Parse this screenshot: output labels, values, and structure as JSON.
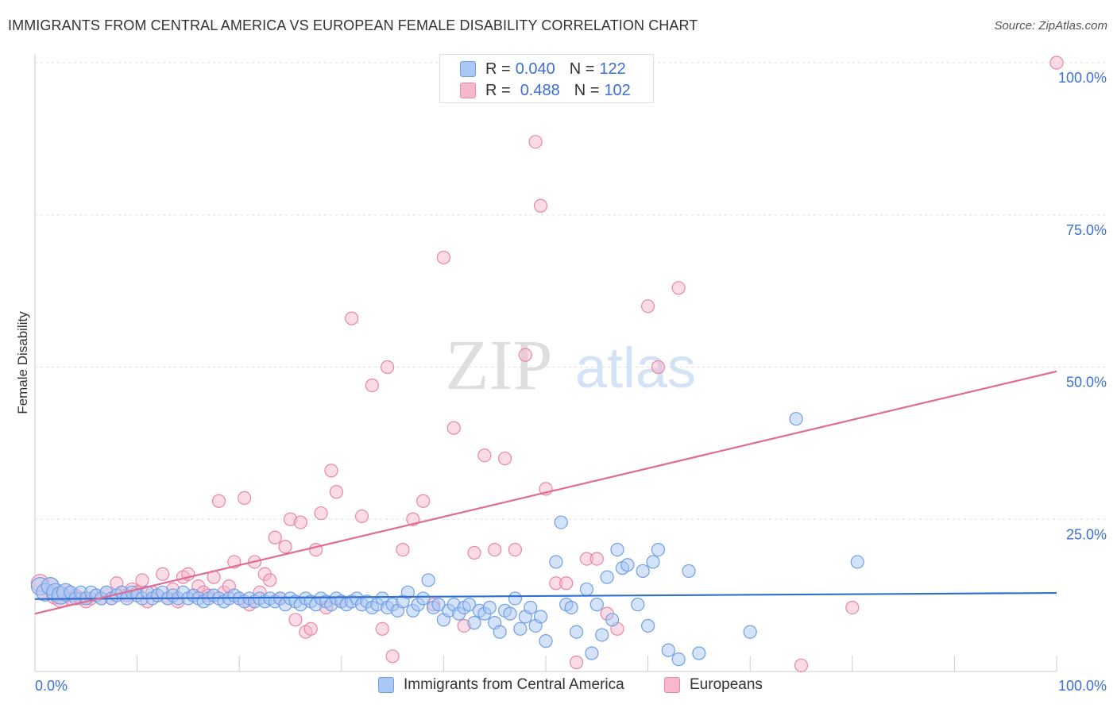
{
  "header": {
    "title": "IMMIGRANTS FROM CENTRAL AMERICA VS EUROPEAN FEMALE DISABILITY CORRELATION CHART",
    "source": "Source: ZipAtlas.com"
  },
  "colors": {
    "blue_fill": "#a9c8f5",
    "blue_stroke": "#6f9fe6",
    "blue_line": "#2f6fd1",
    "pink_fill": "#f7b8cb",
    "pink_stroke": "#e886a6",
    "pink_line": "#e06b93",
    "accent_text": "#3a6fd8"
  },
  "legend": {
    "rows": [
      {
        "r_label": "R =",
        "r_value": "0.040",
        "n_label": "N =",
        "n_value": "122"
      },
      {
        "r_label": "R =",
        "r_value": "0.488",
        "n_label": "N =",
        "n_value": "102"
      }
    ]
  },
  "bottom_legend": {
    "items": [
      "Immigrants from Central America",
      "Europeans"
    ]
  },
  "watermark": {
    "zip": "ZIP",
    "atlas": "atlas"
  },
  "chart_data": {
    "type": "scatter",
    "ylabel": "Female Disability",
    "x_tick_labels": [
      "0.0%",
      "100.0%"
    ],
    "y_tick_labels": [
      "100.0%",
      "75.0%",
      "50.0%",
      "25.0%"
    ],
    "y_ticks": [
      100,
      75,
      50,
      25
    ],
    "xlim": [
      0,
      100
    ],
    "ylim": [
      0,
      100
    ],
    "grid": true,
    "legend_placement": "top-center",
    "series": [
      {
        "name": "Immigrants from Central America",
        "color": "blue",
        "trend": {
          "x": [
            0,
            100
          ],
          "y": [
            11.9,
            12.9
          ]
        },
        "points": [
          [
            0.5,
            14
          ],
          [
            1,
            13
          ],
          [
            1.5,
            14
          ],
          [
            2,
            13
          ],
          [
            2.5,
            12.5
          ],
          [
            3,
            13
          ],
          [
            3.5,
            13
          ],
          [
            4,
            12
          ],
          [
            4.5,
            13
          ],
          [
            5,
            12
          ],
          [
            5.5,
            13
          ],
          [
            6,
            12.5
          ],
          [
            6.5,
            12
          ],
          [
            7,
            13
          ],
          [
            7.5,
            12
          ],
          [
            8,
            12.5
          ],
          [
            8.5,
            13
          ],
          [
            9,
            12
          ],
          [
            9.5,
            13
          ],
          [
            10,
            12.5
          ],
          [
            10.5,
            12
          ],
          [
            11,
            13
          ],
          [
            11.5,
            12
          ],
          [
            12,
            12.5
          ],
          [
            12.5,
            13
          ],
          [
            13,
            12
          ],
          [
            13.5,
            12.5
          ],
          [
            14,
            12
          ],
          [
            14.5,
            13
          ],
          [
            15,
            12
          ],
          [
            15.5,
            12.5
          ],
          [
            16,
            12
          ],
          [
            16.5,
            11.5
          ],
          [
            17,
            12
          ],
          [
            17.5,
            12.5
          ],
          [
            18,
            12
          ],
          [
            18.5,
            11.5
          ],
          [
            19,
            12
          ],
          [
            19.5,
            12.5
          ],
          [
            20,
            12
          ],
          [
            20.5,
            11.5
          ],
          [
            21,
            12
          ],
          [
            21.5,
            11.5
          ],
          [
            22,
            12
          ],
          [
            22.5,
            11.5
          ],
          [
            23,
            12
          ],
          [
            23.5,
            11.5
          ],
          [
            24,
            12
          ],
          [
            24.5,
            11
          ],
          [
            25,
            12
          ],
          [
            25.5,
            11.5
          ],
          [
            26,
            11
          ],
          [
            26.5,
            12
          ],
          [
            27,
            11.5
          ],
          [
            27.5,
            11
          ],
          [
            28,
            12
          ],
          [
            28.5,
            11.5
          ],
          [
            29,
            11
          ],
          [
            29.5,
            12
          ],
          [
            30,
            11.5
          ],
          [
            30.5,
            11
          ],
          [
            31,
            11.5
          ],
          [
            31.5,
            12
          ],
          [
            32,
            11
          ],
          [
            32.5,
            11.5
          ],
          [
            33,
            10.5
          ],
          [
            33.5,
            11
          ],
          [
            34,
            12
          ],
          [
            34.5,
            10.5
          ],
          [
            35,
            11
          ],
          [
            35.5,
            10
          ],
          [
            36,
            11.5
          ],
          [
            36.5,
            13
          ],
          [
            37,
            10
          ],
          [
            37.5,
            11
          ],
          [
            38,
            12
          ],
          [
            38.5,
            15
          ],
          [
            39,
            10.5
          ],
          [
            39.5,
            11
          ],
          [
            40,
            8.5
          ],
          [
            40.5,
            10
          ],
          [
            41,
            11
          ],
          [
            41.5,
            9.5
          ],
          [
            42,
            10.5
          ],
          [
            42.5,
            11
          ],
          [
            43,
            8
          ],
          [
            43.5,
            10
          ],
          [
            44,
            9.5
          ],
          [
            44.5,
            10.5
          ],
          [
            45,
            8
          ],
          [
            45.5,
            6.5
          ],
          [
            46,
            10
          ],
          [
            46.5,
            9.5
          ],
          [
            47,
            12
          ],
          [
            47.5,
            7
          ],
          [
            48,
            9
          ],
          [
            48.5,
            10.5
          ],
          [
            49,
            7.5
          ],
          [
            49.5,
            9
          ],
          [
            50,
            5
          ],
          [
            51,
            18
          ],
          [
            51.5,
            24.5
          ],
          [
            52,
            11
          ],
          [
            52.5,
            10.5
          ],
          [
            53,
            6.5
          ],
          [
            54,
            13.5
          ],
          [
            54.5,
            3
          ],
          [
            55,
            11
          ],
          [
            55.5,
            6
          ],
          [
            56,
            15.5
          ],
          [
            56.5,
            8.5
          ],
          [
            57,
            20
          ],
          [
            57.5,
            17
          ],
          [
            58,
            17.5
          ],
          [
            59,
            11
          ],
          [
            59.5,
            16.5
          ],
          [
            60,
            7.5
          ],
          [
            60.5,
            18
          ],
          [
            61,
            20
          ],
          [
            62,
            3.5
          ],
          [
            63,
            2
          ],
          [
            64,
            16.5
          ],
          [
            65,
            3
          ],
          [
            70,
            6.5
          ],
          [
            74.5,
            41.5
          ],
          [
            80.5,
            18
          ]
        ]
      },
      {
        "name": "Europeans",
        "color": "pink",
        "trend": {
          "x": [
            0,
            100
          ],
          "y": [
            9.5,
            49.3
          ]
        },
        "points": [
          [
            0.5,
            14.5
          ],
          [
            1,
            13
          ],
          [
            1.5,
            14
          ],
          [
            2,
            12.5
          ],
          [
            2.5,
            12
          ],
          [
            3,
            13
          ],
          [
            3.5,
            12
          ],
          [
            4,
            12.5
          ],
          [
            4.5,
            12
          ],
          [
            5,
            11.5
          ],
          [
            5.5,
            12
          ],
          [
            6,
            12.5
          ],
          [
            6.5,
            12
          ],
          [
            7,
            13
          ],
          [
            7.5,
            12
          ],
          [
            8,
            14.5
          ],
          [
            8.5,
            13
          ],
          [
            9,
            12.5
          ],
          [
            9.5,
            13.5
          ],
          [
            10,
            13
          ],
          [
            10.5,
            15
          ],
          [
            11,
            11.5
          ],
          [
            11.5,
            13
          ],
          [
            12,
            12.5
          ],
          [
            12.5,
            16
          ],
          [
            13,
            12
          ],
          [
            13.5,
            13.5
          ],
          [
            14,
            11.5
          ],
          [
            14.5,
            15.5
          ],
          [
            15,
            16
          ],
          [
            15.5,
            12.5
          ],
          [
            16,
            14
          ],
          [
            16.5,
            13
          ],
          [
            17,
            12.5
          ],
          [
            17.5,
            15.5
          ],
          [
            18,
            28
          ],
          [
            18.5,
            13
          ],
          [
            19,
            14
          ],
          [
            19.5,
            18
          ],
          [
            20,
            12
          ],
          [
            20.5,
            28.5
          ],
          [
            21,
            11
          ],
          [
            21.5,
            18
          ],
          [
            22,
            13
          ],
          [
            22.5,
            16
          ],
          [
            23,
            15
          ],
          [
            23.5,
            22
          ],
          [
            24,
            12
          ],
          [
            24.5,
            20.5
          ],
          [
            25,
            25
          ],
          [
            25.5,
            8.5
          ],
          [
            26,
            24.5
          ],
          [
            26.5,
            6.5
          ],
          [
            27,
            7
          ],
          [
            27.5,
            20
          ],
          [
            28,
            26
          ],
          [
            28.5,
            10.5
          ],
          [
            29,
            33
          ],
          [
            29.5,
            29.5
          ],
          [
            30,
            11.5
          ],
          [
            31,
            58
          ],
          [
            32,
            25.5
          ],
          [
            33,
            47
          ],
          [
            34,
            7
          ],
          [
            34.5,
            50
          ],
          [
            35,
            2.5
          ],
          [
            36,
            20
          ],
          [
            37,
            25
          ],
          [
            38,
            28
          ],
          [
            39,
            11
          ],
          [
            40,
            68
          ],
          [
            41,
            40
          ],
          [
            42,
            7.5
          ],
          [
            43,
            19.5
          ],
          [
            44,
            35.5
          ],
          [
            45,
            20
          ],
          [
            46,
            35
          ],
          [
            47,
            20
          ],
          [
            48,
            52
          ],
          [
            49,
            87
          ],
          [
            49.5,
            76.5
          ],
          [
            50,
            30
          ],
          [
            51,
            14.5
          ],
          [
            52,
            14.5
          ],
          [
            53,
            1.5
          ],
          [
            54,
            18.5
          ],
          [
            55,
            18.5
          ],
          [
            56,
            9.5
          ],
          [
            57,
            7
          ],
          [
            60,
            60
          ],
          [
            61,
            50
          ],
          [
            63,
            63
          ],
          [
            75,
            1
          ],
          [
            80,
            10.5
          ],
          [
            100,
            100
          ]
        ]
      }
    ]
  }
}
